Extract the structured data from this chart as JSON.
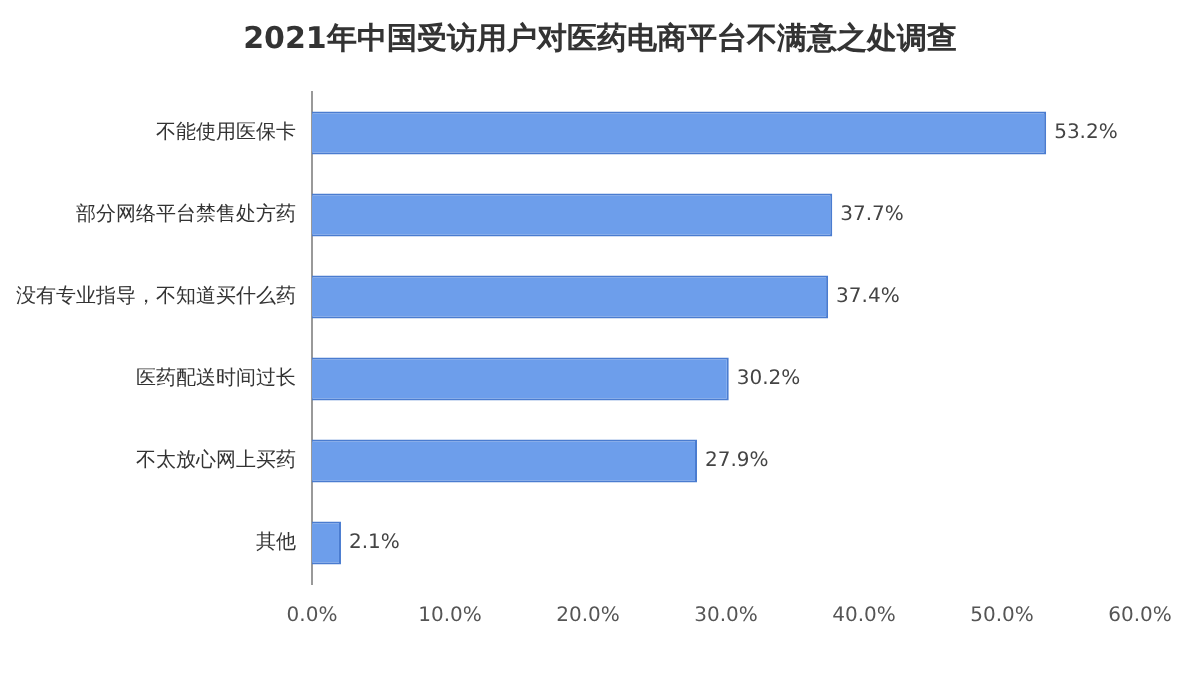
{
  "chart_data": {
    "type": "bar",
    "orientation": "horizontal",
    "title": "2021年中国受访用户对医药电商平台不满意之处调查",
    "categories": [
      "不能使用医保卡",
      "部分网络平台禁售处方药",
      "没有专业指导，不知道买什么药",
      "医药配送时间过长",
      "不太放心网上买药",
      "其他"
    ],
    "values": [
      53.2,
      37.7,
      37.4,
      30.2,
      27.9,
      2.1
    ],
    "value_labels": [
      "53.2%",
      "37.7%",
      "37.4%",
      "30.2%",
      "27.9%",
      "2.1%"
    ],
    "color": "#6d9eeb",
    "xlim": [
      0,
      60
    ],
    "xticks": [
      {
        "value": 0,
        "label": "0.0%"
      },
      {
        "value": 10,
        "label": "10.0%"
      },
      {
        "value": 20,
        "label": "20.0%"
      },
      {
        "value": 30,
        "label": "30.0%"
      },
      {
        "value": 40,
        "label": "40.0%"
      },
      {
        "value": 50,
        "label": "50.0%"
      },
      {
        "value": 60,
        "label": "60.0%"
      }
    ],
    "grid": false,
    "legend": false
  }
}
